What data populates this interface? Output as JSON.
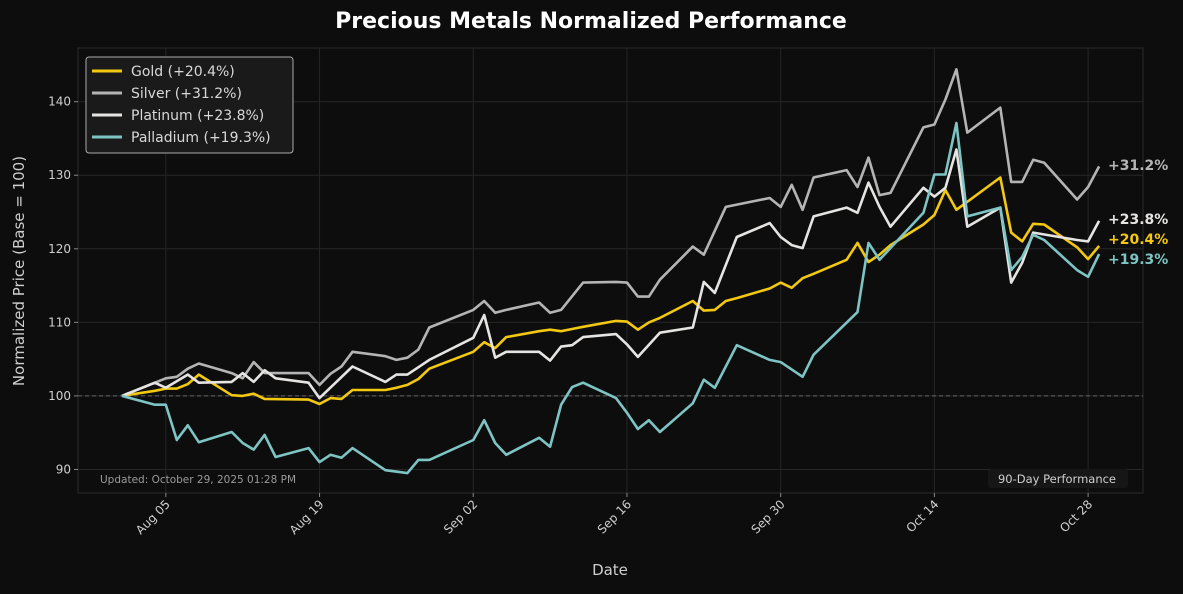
{
  "chart_data": {
    "type": "line",
    "title": "Precious Metals Normalized Performance",
    "xlabel": "Date",
    "ylabel": "Normalized Price (Base = 100)",
    "xlim": [
      "2025-07-28",
      "2025-11-02"
    ],
    "ylim": [
      86.8,
      147.3
    ],
    "x_ticks": [
      {
        "date": "2025-08-05",
        "label": "Aug 05"
      },
      {
        "date": "2025-08-19",
        "label": "Aug 19"
      },
      {
        "date": "2025-09-02",
        "label": "Sep 02"
      },
      {
        "date": "2025-09-16",
        "label": "Sep 16"
      },
      {
        "date": "2025-09-30",
        "label": "Sep 30"
      },
      {
        "date": "2025-10-14",
        "label": "Oct 14"
      },
      {
        "date": "2025-10-28",
        "label": "Oct 28"
      }
    ],
    "y_ticks": [
      90,
      100,
      110,
      120,
      130,
      140
    ],
    "y_tick_labels": [
      "90",
      "100",
      "110",
      "120",
      "130",
      "140"
    ],
    "baseline": 100,
    "grid": true,
    "legend_position": "top-left",
    "annotations": {
      "updated": "Updated: October 29, 2025 01:28 PM",
      "period": "90-Day Performance"
    },
    "series": [
      {
        "name": "Gold (+20.4%)",
        "end_label": "+20.4%",
        "color": "#f2c811",
        "points": [
          [
            "2025-08-01",
            100
          ],
          [
            "2025-08-04",
            100.7
          ],
          [
            "2025-08-05",
            101
          ],
          [
            "2025-08-06",
            101
          ],
          [
            "2025-08-07",
            101.6
          ],
          [
            "2025-08-08",
            102.9
          ],
          [
            "2025-08-11",
            100.1
          ],
          [
            "2025-08-12",
            100
          ],
          [
            "2025-08-13",
            100.3
          ],
          [
            "2025-08-14",
            99.6
          ],
          [
            "2025-08-18",
            99.5
          ],
          [
            "2025-08-19",
            98.9
          ],
          [
            "2025-08-20",
            99.7
          ],
          [
            "2025-08-21",
            99.6
          ],
          [
            "2025-08-22",
            100.8
          ],
          [
            "2025-08-25",
            100.8
          ],
          [
            "2025-08-26",
            101.1
          ],
          [
            "2025-08-27",
            101.5
          ],
          [
            "2025-08-28",
            102.3
          ],
          [
            "2025-08-29",
            103.7
          ],
          [
            "2025-09-02",
            106
          ],
          [
            "2025-09-03",
            107.3
          ],
          [
            "2025-09-04",
            106.5
          ],
          [
            "2025-09-05",
            108
          ],
          [
            "2025-09-08",
            108.8
          ],
          [
            "2025-09-09",
            109
          ],
          [
            "2025-09-10",
            108.8
          ],
          [
            "2025-09-11",
            109.1
          ],
          [
            "2025-09-12",
            109.4
          ],
          [
            "2025-09-15",
            110.2
          ],
          [
            "2025-09-16",
            110.1
          ],
          [
            "2025-09-17",
            109
          ],
          [
            "2025-09-18",
            110
          ],
          [
            "2025-09-19",
            110.6
          ],
          [
            "2025-09-22",
            112.9
          ],
          [
            "2025-09-23",
            111.6
          ],
          [
            "2025-09-24",
            111.7
          ],
          [
            "2025-09-25",
            112.9
          ],
          [
            "2025-09-26",
            113.3
          ],
          [
            "2025-09-29",
            114.6
          ],
          [
            "2025-09-30",
            115.4
          ],
          [
            "2025-10-01",
            114.7
          ],
          [
            "2025-10-02",
            116
          ],
          [
            "2025-10-03",
            116.6
          ],
          [
            "2025-10-06",
            118.5
          ],
          [
            "2025-10-07",
            120.8
          ],
          [
            "2025-10-08",
            118.2
          ],
          [
            "2025-10-09",
            119.2
          ],
          [
            "2025-10-10",
            120.5
          ],
          [
            "2025-10-13",
            123.3
          ],
          [
            "2025-10-14",
            124.6
          ],
          [
            "2025-10-15",
            128
          ],
          [
            "2025-10-16",
            125.3
          ],
          [
            "2025-10-20",
            129.7
          ],
          [
            "2025-10-21",
            122.2
          ],
          [
            "2025-10-22",
            121
          ],
          [
            "2025-10-23",
            123.4
          ],
          [
            "2025-10-24",
            123.3
          ],
          [
            "2025-10-27",
            120.2
          ],
          [
            "2025-10-28",
            118.6
          ],
          [
            "2025-10-29",
            120.4
          ]
        ]
      },
      {
        "name": "Silver (+31.2%)",
        "end_label": "+31.2%",
        "color": "#b4b4b4",
        "points": [
          [
            "2025-08-01",
            100
          ],
          [
            "2025-08-04",
            101.8
          ],
          [
            "2025-08-05",
            102.4
          ],
          [
            "2025-08-06",
            102.6
          ],
          [
            "2025-08-07",
            103.7
          ],
          [
            "2025-08-08",
            104.4
          ],
          [
            "2025-08-11",
            103.1
          ],
          [
            "2025-08-12",
            102.4
          ],
          [
            "2025-08-13",
            104.6
          ],
          [
            "2025-08-14",
            103.1
          ],
          [
            "2025-08-15",
            103.1
          ],
          [
            "2025-08-18",
            103.1
          ],
          [
            "2025-08-19",
            101.5
          ],
          [
            "2025-08-20",
            103
          ],
          [
            "2025-08-21",
            104
          ],
          [
            "2025-08-22",
            106
          ],
          [
            "2025-08-25",
            105.4
          ],
          [
            "2025-08-26",
            104.9
          ],
          [
            "2025-08-27",
            105.2
          ],
          [
            "2025-08-28",
            106.3
          ],
          [
            "2025-08-29",
            109.3
          ],
          [
            "2025-09-02",
            111.7
          ],
          [
            "2025-09-03",
            112.9
          ],
          [
            "2025-09-04",
            111.3
          ],
          [
            "2025-09-05",
            111.7
          ],
          [
            "2025-09-08",
            112.7
          ],
          [
            "2025-09-09",
            111.3
          ],
          [
            "2025-09-10",
            111.7
          ],
          [
            "2025-09-12",
            115.4
          ],
          [
            "2025-09-15",
            115.5
          ],
          [
            "2025-09-16",
            115.4
          ],
          [
            "2025-09-17",
            113.5
          ],
          [
            "2025-09-18",
            113.5
          ],
          [
            "2025-09-19",
            115.8
          ],
          [
            "2025-09-22",
            120.3
          ],
          [
            "2025-09-23",
            119.2
          ],
          [
            "2025-09-25",
            125.7
          ],
          [
            "2025-09-29",
            126.9
          ],
          [
            "2025-09-30",
            125.7
          ],
          [
            "2025-10-01",
            128.7
          ],
          [
            "2025-10-02",
            125.3
          ],
          [
            "2025-10-03",
            129.7
          ],
          [
            "2025-10-06",
            130.7
          ],
          [
            "2025-10-07",
            128.4
          ],
          [
            "2025-10-08",
            132.4
          ],
          [
            "2025-10-09",
            127.3
          ],
          [
            "2025-10-10",
            127.6
          ],
          [
            "2025-10-13",
            136.5
          ],
          [
            "2025-10-14",
            136.9
          ],
          [
            "2025-10-15",
            140.3
          ],
          [
            "2025-10-16",
            144.4
          ],
          [
            "2025-10-17",
            135.8
          ],
          [
            "2025-10-20",
            139.2
          ],
          [
            "2025-10-21",
            129.1
          ],
          [
            "2025-10-22",
            129.1
          ],
          [
            "2025-10-23",
            132.1
          ],
          [
            "2025-10-24",
            131.7
          ],
          [
            "2025-10-27",
            126.7
          ],
          [
            "2025-10-28",
            128.4
          ],
          [
            "2025-10-29",
            131.2
          ]
        ]
      },
      {
        "name": "Platinum (+23.8%)",
        "end_label": "+23.8%",
        "color": "#e5e4e2",
        "points": [
          [
            "2025-08-01",
            100
          ],
          [
            "2025-08-04",
            101.8
          ],
          [
            "2025-08-05",
            101.1
          ],
          [
            "2025-08-07",
            102.9
          ],
          [
            "2025-08-08",
            101.8
          ],
          [
            "2025-08-11",
            101.9
          ],
          [
            "2025-08-12",
            103.1
          ],
          [
            "2025-08-13",
            101.9
          ],
          [
            "2025-08-14",
            103.5
          ],
          [
            "2025-08-15",
            102.4
          ],
          [
            "2025-08-18",
            101.8
          ],
          [
            "2025-08-19",
            99.7
          ],
          [
            "2025-08-22",
            104
          ],
          [
            "2025-08-25",
            101.9
          ],
          [
            "2025-08-26",
            102.9
          ],
          [
            "2025-08-27",
            102.9
          ],
          [
            "2025-08-29",
            104.9
          ],
          [
            "2025-09-02",
            107.9
          ],
          [
            "2025-09-03",
            111
          ],
          [
            "2025-09-04",
            105.2
          ],
          [
            "2025-09-05",
            106
          ],
          [
            "2025-09-08",
            106
          ],
          [
            "2025-09-09",
            104.8
          ],
          [
            "2025-09-10",
            106.7
          ],
          [
            "2025-09-11",
            106.9
          ],
          [
            "2025-09-12",
            108
          ],
          [
            "2025-09-15",
            108.4
          ],
          [
            "2025-09-16",
            107
          ],
          [
            "2025-09-17",
            105.3
          ],
          [
            "2025-09-19",
            108.6
          ],
          [
            "2025-09-22",
            109.3
          ],
          [
            "2025-09-23",
            115.5
          ],
          [
            "2025-09-24",
            114
          ],
          [
            "2025-09-26",
            121.6
          ],
          [
            "2025-09-29",
            123.5
          ],
          [
            "2025-09-30",
            121.6
          ],
          [
            "2025-10-01",
            120.5
          ],
          [
            "2025-10-02",
            120.1
          ],
          [
            "2025-10-03",
            124.4
          ],
          [
            "2025-10-06",
            125.6
          ],
          [
            "2025-10-07",
            124.9
          ],
          [
            "2025-10-08",
            129
          ],
          [
            "2025-10-09",
            125.7
          ],
          [
            "2025-10-10",
            123
          ],
          [
            "2025-10-13",
            128.3
          ],
          [
            "2025-10-14",
            127.1
          ],
          [
            "2025-10-15",
            128.3
          ],
          [
            "2025-10-16",
            133.5
          ],
          [
            "2025-10-17",
            123
          ],
          [
            "2025-10-20",
            125.6
          ],
          [
            "2025-10-21",
            115.4
          ],
          [
            "2025-10-22",
            118.1
          ],
          [
            "2025-10-23",
            122.2
          ],
          [
            "2025-10-27",
            121.2
          ],
          [
            "2025-10-28",
            121
          ],
          [
            "2025-10-29",
            123.8
          ]
        ]
      },
      {
        "name": "Palladium (+19.3%)",
        "end_label": "+19.3%",
        "color": "#7ec4c4",
        "points": [
          [
            "2025-08-01",
            100
          ],
          [
            "2025-08-04",
            98.8
          ],
          [
            "2025-08-05",
            98.8
          ],
          [
            "2025-08-06",
            94
          ],
          [
            "2025-08-07",
            96
          ],
          [
            "2025-08-08",
            93.7
          ],
          [
            "2025-08-11",
            95.1
          ],
          [
            "2025-08-12",
            93.6
          ],
          [
            "2025-08-13",
            92.7
          ],
          [
            "2025-08-14",
            94.7
          ],
          [
            "2025-08-15",
            91.7
          ],
          [
            "2025-08-18",
            92.9
          ],
          [
            "2025-08-19",
            91
          ],
          [
            "2025-08-20",
            92
          ],
          [
            "2025-08-21",
            91.6
          ],
          [
            "2025-08-22",
            92.9
          ],
          [
            "2025-08-25",
            89.9
          ],
          [
            "2025-08-27",
            89.5
          ],
          [
            "2025-08-28",
            91.3
          ],
          [
            "2025-08-29",
            91.3
          ],
          [
            "2025-09-02",
            94
          ],
          [
            "2025-09-03",
            96.7
          ],
          [
            "2025-09-04",
            93.6
          ],
          [
            "2025-09-05",
            92
          ],
          [
            "2025-09-08",
            94.3
          ],
          [
            "2025-09-09",
            93.1
          ],
          [
            "2025-09-10",
            98.8
          ],
          [
            "2025-09-11",
            101.2
          ],
          [
            "2025-09-12",
            101.8
          ],
          [
            "2025-09-15",
            99.7
          ],
          [
            "2025-09-16",
            97.7
          ],
          [
            "2025-09-17",
            95.5
          ],
          [
            "2025-09-18",
            96.7
          ],
          [
            "2025-09-19",
            95.1
          ],
          [
            "2025-09-22",
            99
          ],
          [
            "2025-09-23",
            102.2
          ],
          [
            "2025-09-24",
            101.1
          ],
          [
            "2025-09-26",
            106.9
          ],
          [
            "2025-09-29",
            104.9
          ],
          [
            "2025-09-30",
            104.6
          ],
          [
            "2025-10-02",
            102.6
          ],
          [
            "2025-10-03",
            105.6
          ],
          [
            "2025-10-07",
            111.4
          ],
          [
            "2025-10-08",
            120.8
          ],
          [
            "2025-10-09",
            118.5
          ],
          [
            "2025-10-13",
            124.9
          ],
          [
            "2025-10-14",
            130.1
          ],
          [
            "2025-10-15",
            130.1
          ],
          [
            "2025-10-16",
            137.1
          ],
          [
            "2025-10-17",
            124.4
          ],
          [
            "2025-10-20",
            125.6
          ],
          [
            "2025-10-21",
            117.1
          ],
          [
            "2025-10-22",
            118.9
          ],
          [
            "2025-10-23",
            121.9
          ],
          [
            "2025-10-24",
            121.2
          ],
          [
            "2025-10-27",
            117.1
          ],
          [
            "2025-10-28",
            116.2
          ],
          [
            "2025-10-29",
            119.3
          ]
        ]
      }
    ]
  },
  "colors": {
    "background": "#0d0d0d",
    "grid": "#2a2a2a",
    "text": "#cfcfcf",
    "title": "#ffffff"
  }
}
